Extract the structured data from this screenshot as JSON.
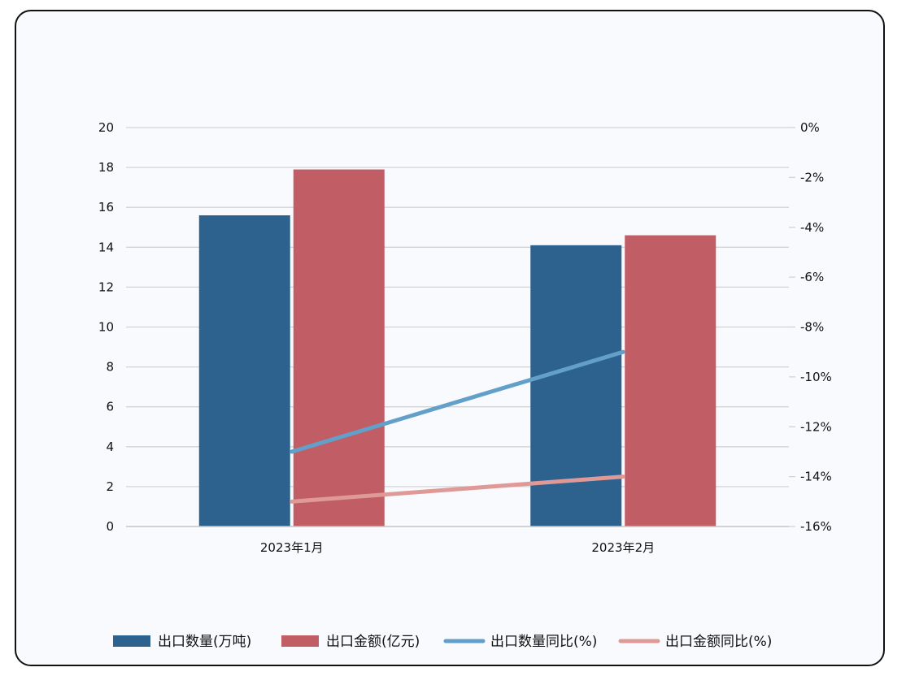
{
  "chart_data": {
    "type": "bar",
    "categories": [
      "2023年1月",
      "2023年2月"
    ],
    "series": [
      {
        "name": "出口数量(万吨)",
        "type": "bar",
        "axis": "left",
        "color": "#2e628e",
        "values": [
          15.6,
          14.1
        ]
      },
      {
        "name": "出口金额(亿元)",
        "type": "bar",
        "axis": "left",
        "color": "#c05d65",
        "values": [
          17.9,
          14.6
        ]
      },
      {
        "name": "出口数量同比(%)",
        "type": "line",
        "axis": "right",
        "color": "#63a0c9",
        "values": [
          -13.0,
          -9.0
        ]
      },
      {
        "name": "出口金额同比(%)",
        "type": "line",
        "axis": "right",
        "color": "#df9a98",
        "values": [
          -15.0,
          -14.0
        ]
      }
    ],
    "left_axis": {
      "ylim": [
        0,
        20
      ],
      "ticks": [
        "0",
        "2",
        "4",
        "6",
        "8",
        "10",
        "12",
        "14",
        "16",
        "18",
        "20"
      ]
    },
    "right_axis": {
      "ylim": [
        -16,
        0
      ],
      "ticks": [
        "-16%",
        "-14%",
        "-12%",
        "-10%",
        "-8%",
        "-6%",
        "-4%",
        "-2%",
        "0%"
      ]
    },
    "grid": true,
    "legend_position": "bottom"
  }
}
